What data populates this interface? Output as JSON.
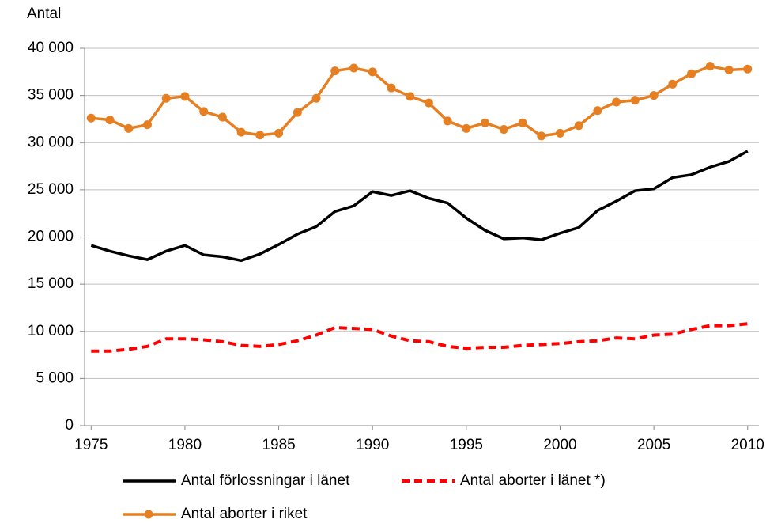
{
  "chart_data": {
    "type": "line",
    "y_label": "Antal",
    "x": [
      1975,
      1976,
      1977,
      1978,
      1979,
      1980,
      1981,
      1982,
      1983,
      1984,
      1985,
      1986,
      1987,
      1988,
      1989,
      1990,
      1991,
      1992,
      1993,
      1994,
      1995,
      1996,
      1997,
      1998,
      1999,
      2000,
      2001,
      2002,
      2003,
      2004,
      2005,
      2006,
      2007,
      2008,
      2009,
      2010
    ],
    "xlim": [
      1974.65,
      2010.6
    ],
    "xticks": [
      1975,
      1980,
      1985,
      1990,
      1995,
      2000,
      2005,
      2010
    ],
    "ylim": [
      0,
      40000
    ],
    "yticks": [
      0,
      {
        "value": 5000,
        "label": "5 000"
      },
      {
        "value": 10000,
        "label": "10 000"
      },
      {
        "value": 15000,
        "label": "15 000"
      },
      {
        "value": 20000,
        "label": "20 000"
      },
      {
        "value": 25000,
        "label": "25 000"
      },
      {
        "value": 30000,
        "label": "30 000"
      },
      {
        "value": 35000,
        "label": "35 000"
      },
      {
        "value": 40000,
        "label": "40 000"
      }
    ],
    "grid": true,
    "series": [
      {
        "name": "Antal förlossningar i länet",
        "color": "#000000",
        "dash": false,
        "marker": false,
        "values": [
          19100,
          18500,
          18000,
          17600,
          18500,
          19100,
          18100,
          17900,
          17500,
          18200,
          19200,
          20300,
          21100,
          22700,
          23300,
          24800,
          24400,
          24900,
          24100,
          23600,
          22000,
          20700,
          19800,
          19900,
          19700,
          20400,
          21000,
          22800,
          23800,
          24900,
          25100,
          26300,
          26600,
          27400,
          28000,
          29100
        ]
      },
      {
        "name": "Antal aborter i länet *)",
        "color": "#ff0000",
        "dash": true,
        "marker": false,
        "values": [
          7900,
          7900,
          8100,
          8400,
          9200,
          9200,
          9100,
          8900,
          8500,
          8400,
          8600,
          9000,
          9600,
          10400,
          10300,
          10200,
          9500,
          9000,
          8900,
          8400,
          8200,
          8300,
          8300,
          8500,
          8600,
          8700,
          8900,
          9000,
          9300,
          9200,
          9600,
          9700,
          10200,
          10600,
          10600,
          10800
        ]
      },
      {
        "name": "Antal aborter i riket",
        "color": "#e57f22",
        "dash": false,
        "marker": true,
        "values": [
          32600,
          32400,
          31500,
          31900,
          34700,
          34900,
          33300,
          32700,
          31100,
          30800,
          31000,
          33200,
          34700,
          37600,
          37900,
          37500,
          35800,
          34900,
          34200,
          32300,
          31500,
          32100,
          31400,
          32100,
          30700,
          31000,
          31800,
          33400,
          34300,
          34500,
          35000,
          36200,
          37300,
          38100,
          37700,
          37800
        ]
      }
    ]
  }
}
